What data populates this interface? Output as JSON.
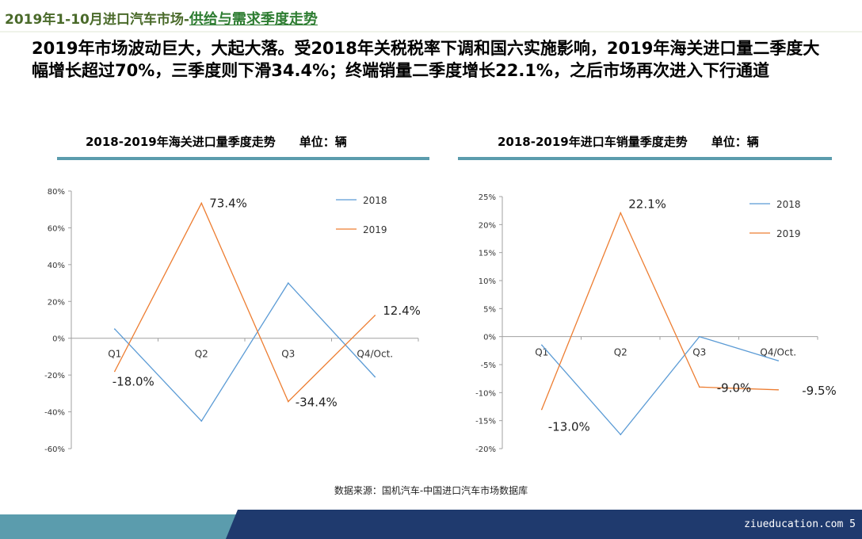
{
  "header": {
    "title_main": "2019年1-10月进口汽车市场-",
    "title_sub": "供给与需求季度走势"
  },
  "headline": "2019年市场波动巨大，大起大落。受2018年关税税率下调和国六实施影响，2019年海关进口量二季度大幅增长超过70%，三季度则下滑34.4%；终端销量二季度增长22.1%，之后市场再次进入下行通道",
  "charts": {
    "left": {
      "title": "2018-2019年海关进口量季度走势",
      "unit": "单位：辆"
    },
    "right": {
      "title": "2018-2019年进口车销量季度走势",
      "unit": "单位：辆"
    }
  },
  "colors": {
    "series_2018": "#5b9bd5",
    "series_2019": "#ed7d31",
    "rule": "#5b9cad",
    "footer": "#1f3a6e"
  },
  "chart_data": [
    {
      "type": "line",
      "categories": [
        "Q1",
        "Q2",
        "Q3",
        "Q4/Oct."
      ],
      "series": [
        {
          "name": "2018",
          "values": [
            5,
            -45,
            30,
            -21
          ]
        },
        {
          "name": "2019",
          "values": [
            -18.0,
            73.4,
            -34.4,
            12.4
          ]
        }
      ],
      "data_labels": [
        "-18.0%",
        "73.4%",
        "-34.4%",
        "12.4%"
      ],
      "yticks": [
        "80%",
        "60%",
        "40%",
        "20%",
        "0%",
        "-20%",
        "-40%",
        "-60%"
      ],
      "ylim": [
        -60,
        80
      ],
      "legend": "top-right",
      "grid": false
    },
    {
      "type": "line",
      "categories": [
        "Q1",
        "Q2",
        "Q3",
        "Q4/Oct."
      ],
      "series": [
        {
          "name": "2018",
          "values": [
            -1.5,
            -17.5,
            0,
            -4.3
          ]
        },
        {
          "name": "2019",
          "values": [
            -13.0,
            22.1,
            -9.0,
            -9.5
          ]
        }
      ],
      "data_labels": [
        "-13.0%",
        "22.1%",
        "-9.0%",
        "-9.5%"
      ],
      "yticks": [
        "25%",
        "20%",
        "15%",
        "10%",
        "5%",
        "0%",
        "-5%",
        "-10%",
        "-15%",
        "-20%"
      ],
      "ylim": [
        -20,
        25
      ],
      "legend": "top-right",
      "grid": false
    }
  ],
  "source": "数据来源：国机汽车-中国进口汽车市场数据库",
  "footer": {
    "site": "ziueducation.com",
    "page": "5"
  }
}
